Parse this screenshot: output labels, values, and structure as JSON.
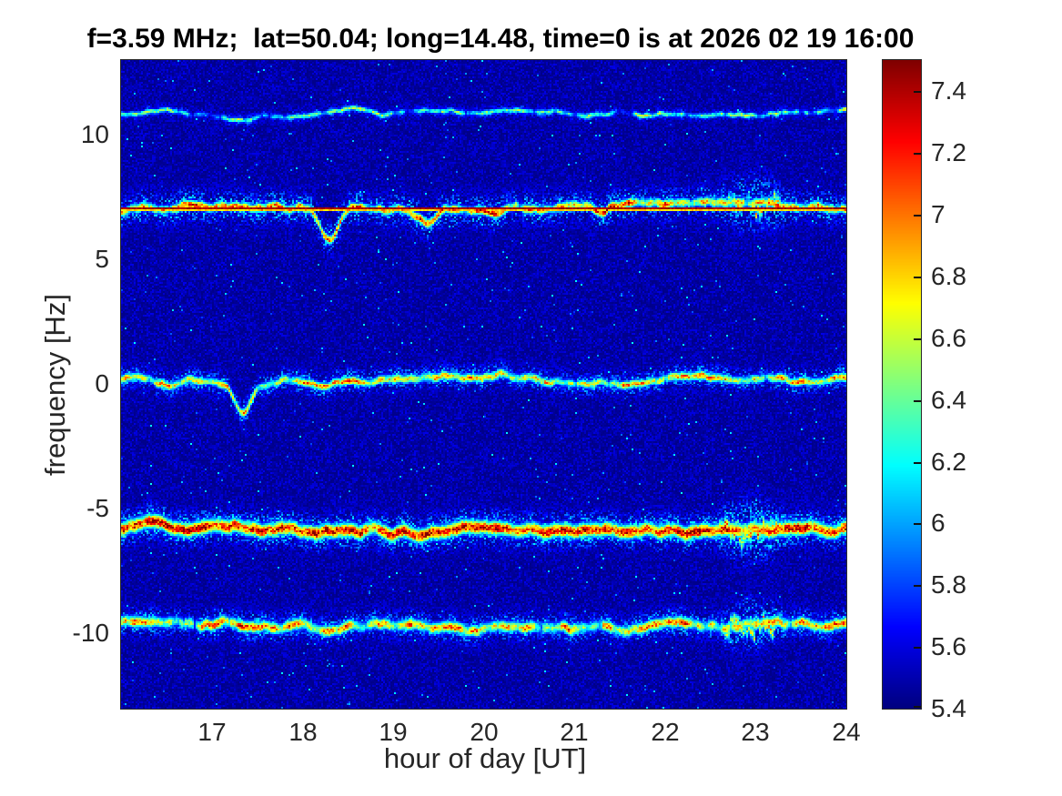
{
  "chart_data": {
    "type": "heatmap",
    "subtype": "doppler-spectrogram",
    "title": "f=3.59 MHz;  lat=50.04; long=14.48, time=0 is at 2026 02 19 16:00",
    "xlabel": "hour of day [UT]",
    "ylabel": "frequency [Hz]",
    "xlim": [
      16,
      24
    ],
    "ylim": [
      -13,
      13
    ],
    "x_ticks": [
      17,
      18,
      19,
      20,
      21,
      22,
      23,
      24
    ],
    "y_ticks": [
      10,
      5,
      0,
      -5,
      -10
    ],
    "grid": false,
    "colorbar": {
      "position": "right",
      "colormap": "jet",
      "range": [
        5.4,
        7.5
      ],
      "ticks": [
        7.4,
        7.2,
        7,
        6.8,
        6.6,
        6.4,
        6.2,
        6,
        5.8,
        5.6,
        5.4
      ]
    },
    "background_level": 5.45,
    "doppler_traces": [
      {
        "name": "weak wavy trace near +10.8 Hz",
        "center_hz": 10.85,
        "core_level": 6.75,
        "intensity_var": 1.0,
        "core_width_hz": 0.07,
        "fringe_width_hz": 0.18,
        "fringe_level": 5.95,
        "wobble_amp_hz": 0.22,
        "wobble_period_h": 0.32,
        "drift_amp_hz": 0.28,
        "seed": 11,
        "carrier_line": false,
        "dips": []
      },
      {
        "name": "strong trace with straight carrier line near +7.0 Hz",
        "center_hz": 7.02,
        "core_level": 7.4,
        "intensity_var": 0.95,
        "core_width_hz": 0.12,
        "fringe_width_hz": 0.5,
        "fringe_level": 6.15,
        "wobble_amp_hz": 0.3,
        "wobble_period_h": 0.3,
        "drift_amp_hz": 0.25,
        "seed": 22,
        "carrier_line": true,
        "carrier_level": 7.5,
        "dips": [
          {
            "t": 18.3,
            "depth_hz": 1.3,
            "width_h": 0.1
          },
          {
            "t": 19.4,
            "depth_hz": 0.7,
            "width_h": 0.09
          }
        ]
      },
      {
        "name": "trace near 0 Hz",
        "center_hz": 0.12,
        "core_level": 7.2,
        "intensity_var": 0.85,
        "core_width_hz": 0.12,
        "fringe_width_hz": 0.36,
        "fringe_level": 6.2,
        "wobble_amp_hz": 0.3,
        "wobble_period_h": 0.33,
        "drift_amp_hz": 0.22,
        "seed": 33,
        "carrier_line": false,
        "dips": [
          {
            "t": 17.35,
            "depth_hz": 1.1,
            "width_h": 0.09
          }
        ]
      },
      {
        "name": "strongest trace near -5.8 Hz",
        "center_hz": -5.78,
        "core_level": 7.55,
        "intensity_var": 0.55,
        "core_width_hz": 0.19,
        "fringe_width_hz": 0.5,
        "fringe_level": 6.3,
        "wobble_amp_hz": 0.32,
        "wobble_period_h": 0.34,
        "drift_amp_hz": 0.3,
        "seed": 44,
        "carrier_line": false,
        "dips": []
      },
      {
        "name": "trace near -9.7 Hz",
        "center_hz": -9.68,
        "core_level": 7.3,
        "intensity_var": 1.0,
        "core_width_hz": 0.15,
        "fringe_width_hz": 0.42,
        "fringe_level": 6.2,
        "wobble_amp_hz": 0.3,
        "wobble_period_h": 0.3,
        "drift_amp_hz": 0.3,
        "seed": 55,
        "carrier_line": false,
        "dips": []
      }
    ],
    "disturbance": {
      "t_start": 22.55,
      "t_end": 23.35,
      "extra_spread_hz": 0.9,
      "affected_trace_indices": [
        1,
        3,
        4
      ]
    }
  }
}
